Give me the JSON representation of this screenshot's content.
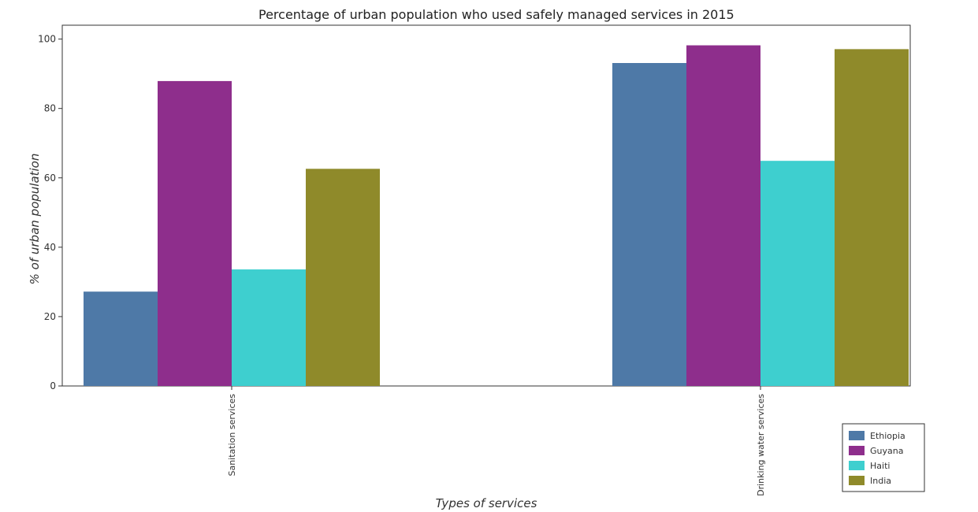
{
  "chart_data": {
    "type": "bar",
    "title": "Percentage of urban population who used safely managed services in 2015",
    "xlabel": "Types of services",
    "ylabel": "% of urban population",
    "categories": [
      "Sanitation services",
      "Drinking water services"
    ],
    "series": [
      {
        "name": "Ethiopia",
        "color": "#4e79a7",
        "values": [
          27.2,
          93.1
        ]
      },
      {
        "name": "Guyana",
        "color": "#8e2e8c",
        "values": [
          87.9,
          98.2
        ]
      },
      {
        "name": "Haiti",
        "color": "#3ecfcf",
        "values": [
          33.6,
          64.9
        ]
      },
      {
        "name": "India",
        "color": "#8f8a2a",
        "values": [
          62.6,
          97.1
        ]
      }
    ],
    "ylim": [
      0,
      104
    ],
    "yticks": [
      0,
      20,
      40,
      60,
      80,
      100
    ],
    "legend_position": "bottom-right",
    "grid": false
  }
}
